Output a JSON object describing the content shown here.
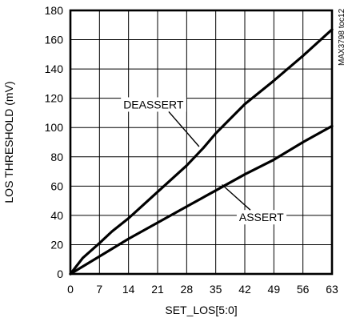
{
  "chart_data": {
    "type": "line",
    "xlabel": "SET_LOS[5:0]",
    "ylabel": "LOS THRESHOLD (mV)",
    "xlim": [
      0,
      63
    ],
    "ylim": [
      0,
      180
    ],
    "xticks": [
      0,
      7,
      14,
      21,
      28,
      35,
      42,
      49,
      56,
      63
    ],
    "yticks": [
      0,
      20,
      40,
      60,
      80,
      100,
      120,
      140,
      160,
      180
    ],
    "grid": true,
    "side_label": "MAX3798 toc12",
    "series": [
      {
        "name": "DEASSERT",
        "x": [
          0,
          3,
          7,
          10,
          14,
          21,
          28,
          32,
          35,
          42,
          49,
          56,
          63
        ],
        "y": [
          0,
          11,
          21,
          29,
          38,
          56,
          74,
          86,
          96,
          116,
          132,
          149,
          167
        ]
      },
      {
        "name": "ASSERT",
        "x": [
          0,
          7,
          14,
          21,
          28,
          35,
          42,
          49,
          56,
          63
        ],
        "y": [
          0,
          12,
          24,
          35,
          46,
          57,
          68,
          78,
          90,
          101
        ]
      }
    ],
    "annotations": [
      {
        "text": "DEASSERT",
        "x": 20,
        "y": 113,
        "point_x": 31,
        "point_y": 87
      },
      {
        "text": "ASSERT",
        "x": 46,
        "y": 36,
        "point_x": 36.5,
        "point_y": 61
      }
    ]
  }
}
